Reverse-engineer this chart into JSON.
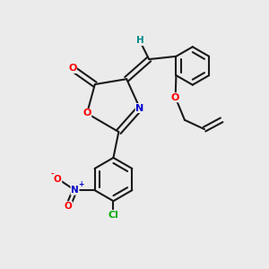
{
  "bg_color": "#ebebeb",
  "bond_color": "#1a1a1a",
  "bond_width": 1.5,
  "atom_colors": {
    "O": "#ff0000",
    "N": "#0000cc",
    "Cl": "#00aa00",
    "H": "#008888",
    "C": "#1a1a1a"
  },
  "font_size": 8,
  "figsize": [
    3.0,
    3.0
  ],
  "dpi": 100
}
